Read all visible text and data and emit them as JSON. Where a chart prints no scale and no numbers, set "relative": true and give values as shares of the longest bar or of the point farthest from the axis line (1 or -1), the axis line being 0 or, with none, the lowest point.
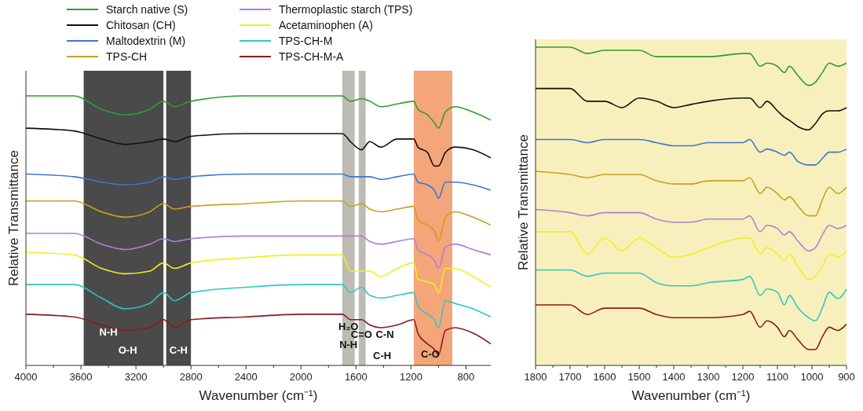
{
  "chart_data": [
    {
      "type": "line",
      "relative": true,
      "xlabel": "Wavenumber (cm⁻¹)",
      "ylabel": "Relative Transmittance",
      "legend": "top",
      "line_style": "solid",
      "marker": "none",
      "xlim": [
        4000,
        620
      ],
      "xticks": [
        4000,
        {
          "value": 3800,
          "label": null
        },
        3600,
        {
          "value": 3400,
          "label": null
        },
        3200,
        {
          "value": 3000,
          "label": null
        },
        2800,
        {
          "value": 2600,
          "label": null
        },
        2400,
        {
          "value": 2200,
          "label": null
        },
        2000,
        {
          "value": 1800,
          "label": null
        },
        1600,
        {
          "value": 1400,
          "label": null
        },
        1200,
        {
          "value": 1000,
          "label": null
        },
        800
      ],
      "x": [
        4000,
        3650,
        3450,
        3280,
        3100,
        3000,
        2920,
        2800,
        2400,
        2000,
        1700,
        1640,
        1560,
        1500,
        1420,
        1300,
        1180,
        1150,
        1080,
        1030,
        1000,
        950,
        880,
        750,
        620
      ],
      "bands": [
        {
          "axis": "x",
          "from": 3580,
          "to": 3000,
          "color": "#4a4a4a"
        },
        {
          "axis": "x",
          "from": 2980,
          "to": 2800,
          "color": "#4a4a4a"
        },
        {
          "axis": "x",
          "from": 1700,
          "to": 1610,
          "color": "#bcbcb4"
        },
        {
          "axis": "x",
          "from": 1580,
          "to": 1530,
          "color": "#bcbcb4"
        },
        {
          "axis": "x",
          "from": 1180,
          "to": 900,
          "color": "#f4a57a"
        }
      ],
      "annotations": [
        "N-H",
        "O-H",
        "C-H",
        "H₂O",
        "N-H",
        "C=O",
        "C-N",
        "C-H",
        "C-O"
      ],
      "series": [
        {
          "name": "Starch native (S)",
          "color": "#2e9e2e",
          "values": [
            1.0,
            1.0,
            0.95,
            0.93,
            0.95,
            0.98,
            0.96,
            0.98,
            1.0,
            1.0,
            1.0,
            0.98,
            0.99,
            0.98,
            0.96,
            0.97,
            0.98,
            0.95,
            0.93,
            0.9,
            0.88,
            0.94,
            0.96,
            0.94,
            0.91
          ]
        },
        {
          "name": "Chitosan (CH)",
          "color": "#111111",
          "values": [
            0.88,
            0.87,
            0.84,
            0.82,
            0.83,
            0.84,
            0.83,
            0.85,
            0.86,
            0.86,
            0.86,
            0.83,
            0.8,
            0.83,
            0.81,
            0.84,
            0.84,
            0.81,
            0.79,
            0.74,
            0.74,
            0.79,
            0.81,
            0.8,
            0.77
          ]
        },
        {
          "name": "Maltodextrin (M)",
          "color": "#3a78d0",
          "values": [
            0.71,
            0.7,
            0.68,
            0.67,
            0.68,
            0.7,
            0.69,
            0.7,
            0.71,
            0.71,
            0.71,
            0.7,
            0.7,
            0.7,
            0.69,
            0.7,
            0.71,
            0.68,
            0.67,
            0.65,
            0.62,
            0.68,
            0.68,
            0.67,
            0.65
          ]
        },
        {
          "name": "TPS-CH",
          "color": "#c8a020",
          "values": [
            0.61,
            0.61,
            0.57,
            0.55,
            0.57,
            0.6,
            0.58,
            0.59,
            0.6,
            0.61,
            0.61,
            0.59,
            0.6,
            0.58,
            0.57,
            0.58,
            0.59,
            0.54,
            0.52,
            0.5,
            0.46,
            0.55,
            0.57,
            0.55,
            0.52
          ]
        },
        {
          "name": "Thermoplastic starch (TPS)",
          "color": "#b07fd8",
          "values": [
            0.49,
            0.49,
            0.45,
            0.43,
            0.45,
            0.47,
            0.46,
            0.47,
            0.48,
            0.48,
            0.48,
            0.48,
            0.48,
            0.46,
            0.45,
            0.46,
            0.47,
            0.43,
            0.41,
            0.39,
            0.36,
            0.44,
            0.45,
            0.43,
            0.41
          ]
        },
        {
          "name": "Acetaminophen (A)",
          "color": "#f0f020",
          "values": [
            0.42,
            0.41,
            0.36,
            0.34,
            0.35,
            0.38,
            0.36,
            0.38,
            0.4,
            0.41,
            0.41,
            0.35,
            0.35,
            0.35,
            0.33,
            0.36,
            0.38,
            0.32,
            0.31,
            0.3,
            0.27,
            0.36,
            0.36,
            0.33,
            0.29
          ]
        },
        {
          "name": "TPS-CH-M",
          "color": "#30c8c0",
          "values": [
            0.3,
            0.3,
            0.25,
            0.21,
            0.23,
            0.27,
            0.24,
            0.27,
            0.29,
            0.3,
            0.3,
            0.27,
            0.29,
            0.26,
            0.25,
            0.26,
            0.27,
            0.22,
            0.19,
            0.17,
            0.14,
            0.24,
            0.23,
            0.21,
            0.18
          ]
        },
        {
          "name": "TPS-CH-M-A",
          "color": "#8b1a1a",
          "values": [
            0.19,
            0.18,
            0.15,
            0.13,
            0.14,
            0.17,
            0.14,
            0.17,
            0.18,
            0.19,
            0.19,
            0.17,
            0.17,
            0.15,
            0.14,
            0.15,
            0.17,
            0.12,
            0.08,
            0.06,
            0.04,
            0.13,
            0.14,
            0.12,
            0.08
          ]
        }
      ]
    },
    {
      "type": "line",
      "relative": true,
      "xlabel": "Wavenumber (cm⁻¹)",
      "ylabel": "Relative Transmittance",
      "line_style": "solid",
      "marker": "none",
      "xlim": [
        1800,
        900
      ],
      "xticks": [
        1800,
        {
          "value": 1750,
          "label": null
        },
        1700,
        {
          "value": 1650,
          "label": null
        },
        1600,
        {
          "value": 1550,
          "label": null
        },
        1500,
        {
          "value": 1450,
          "label": null
        },
        1400,
        {
          "value": 1350,
          "label": null
        },
        1300,
        {
          "value": 1250,
          "label": null
        },
        1200,
        {
          "value": 1150,
          "label": null
        },
        1100,
        {
          "value": 1050,
          "label": null
        },
        1000,
        {
          "value": 950,
          "label": null
        },
        900
      ],
      "x": [
        1800,
        1700,
        1650,
        1600,
        1550,
        1500,
        1450,
        1400,
        1350,
        1300,
        1200,
        1180,
        1150,
        1130,
        1100,
        1080,
        1065,
        1040,
        1010,
        990,
        970,
        950,
        925,
        900
      ],
      "bands": [
        {
          "axis": "x",
          "from": 1800,
          "to": 900,
          "color": "#f8f0bc"
        }
      ],
      "series": [
        {
          "color": "#2e9e2e",
          "values": [
            1.0,
            1.0,
            0.98,
            0.99,
            0.99,
            0.99,
            0.97,
            0.97,
            0.97,
            0.97,
            0.98,
            0.98,
            0.94,
            0.95,
            0.94,
            0.92,
            0.94,
            0.91,
            0.88,
            0.89,
            0.92,
            0.95,
            0.94,
            0.95
          ]
        },
        {
          "color": "#111111",
          "values": [
            0.87,
            0.87,
            0.83,
            0.83,
            0.81,
            0.84,
            0.83,
            0.81,
            0.82,
            0.83,
            0.84,
            0.84,
            0.81,
            0.83,
            0.8,
            0.78,
            0.77,
            0.75,
            0.74,
            0.76,
            0.79,
            0.8,
            0.8,
            0.81
          ]
        },
        {
          "color": "#3a78d0",
          "values": [
            0.71,
            0.71,
            0.7,
            0.71,
            0.71,
            0.71,
            0.7,
            0.69,
            0.69,
            0.7,
            0.7,
            0.71,
            0.67,
            0.68,
            0.67,
            0.66,
            0.67,
            0.64,
            0.63,
            0.63,
            0.65,
            0.67,
            0.67,
            0.68
          ]
        },
        {
          "color": "#c8a020",
          "values": [
            0.61,
            0.6,
            0.59,
            0.6,
            0.6,
            0.6,
            0.58,
            0.57,
            0.57,
            0.58,
            0.58,
            0.59,
            0.54,
            0.56,
            0.54,
            0.52,
            0.53,
            0.5,
            0.47,
            0.47,
            0.52,
            0.56,
            0.54,
            0.56
          ]
        },
        {
          "color": "#b07fd8",
          "values": [
            0.49,
            0.48,
            0.47,
            0.48,
            0.48,
            0.48,
            0.46,
            0.45,
            0.45,
            0.46,
            0.46,
            0.47,
            0.42,
            0.44,
            0.43,
            0.41,
            0.42,
            0.39,
            0.36,
            0.37,
            0.41,
            0.44,
            0.43,
            0.44
          ]
        },
        {
          "color": "#f0f020",
          "values": [
            0.42,
            0.42,
            0.35,
            0.4,
            0.36,
            0.4,
            0.37,
            0.34,
            0.35,
            0.37,
            0.4,
            0.4,
            0.35,
            0.37,
            0.35,
            0.33,
            0.35,
            0.31,
            0.27,
            0.28,
            0.31,
            0.35,
            0.34,
            0.36
          ]
        },
        {
          "color": "#30c8c0",
          "values": [
            0.3,
            0.3,
            0.28,
            0.29,
            0.29,
            0.29,
            0.26,
            0.25,
            0.25,
            0.26,
            0.27,
            0.28,
            0.22,
            0.24,
            0.23,
            0.19,
            0.22,
            0.18,
            0.15,
            0.14,
            0.18,
            0.23,
            0.21,
            0.24
          ]
        },
        {
          "color": "#8b1a1a",
          "values": [
            0.19,
            0.19,
            0.16,
            0.18,
            0.18,
            0.18,
            0.16,
            0.15,
            0.15,
            0.15,
            0.16,
            0.17,
            0.12,
            0.14,
            0.12,
            0.09,
            0.11,
            0.08,
            0.05,
            0.05,
            0.09,
            0.12,
            0.11,
            0.13
          ]
        }
      ]
    }
  ]
}
